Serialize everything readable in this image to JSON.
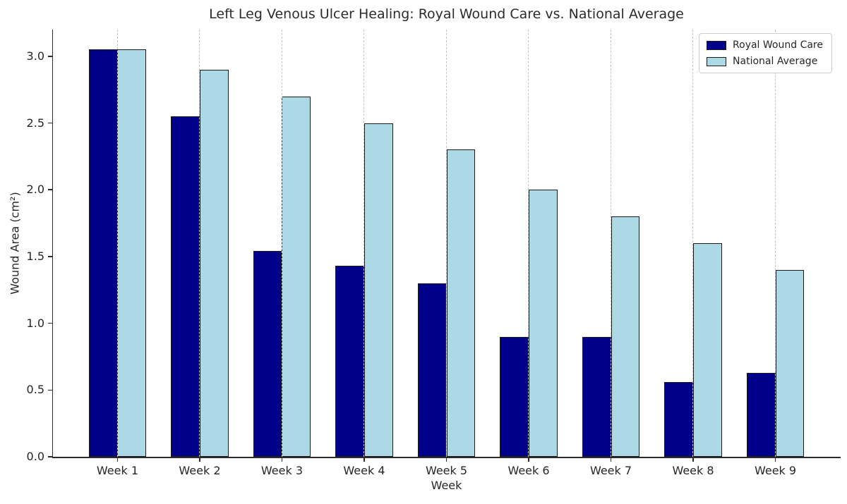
{
  "chart_data": {
    "type": "bar",
    "title": "Left Leg Venous Ulcer Healing: Royal Wound Care vs. National Average",
    "xlabel": "Week",
    "ylabel": "Wound Area (cm²)",
    "categories": [
      "Week 1",
      "Week 2",
      "Week 3",
      "Week 4",
      "Week 5",
      "Week 6",
      "Week 7",
      "Week 8",
      "Week 9"
    ],
    "series": [
      {
        "name": "Royal Wound Care",
        "color": "#00008B",
        "values": [
          3.05,
          2.55,
          1.54,
          1.43,
          1.3,
          0.9,
          0.9,
          0.56,
          0.63
        ]
      },
      {
        "name": "National Average",
        "color": "#ADD8E6",
        "values": [
          3.05,
          2.9,
          2.7,
          2.5,
          2.3,
          2.0,
          1.8,
          1.6,
          1.4
        ]
      }
    ],
    "yticks": [
      "0.0",
      "0.5",
      "1.0",
      "1.5",
      "2.0",
      "2.5",
      "3.0"
    ],
    "ylim": [
      0,
      3.2
    ],
    "bar_edge_color": "#1a1a1a",
    "grid": "vertical-dashed",
    "legend_position": "upper-right"
  }
}
